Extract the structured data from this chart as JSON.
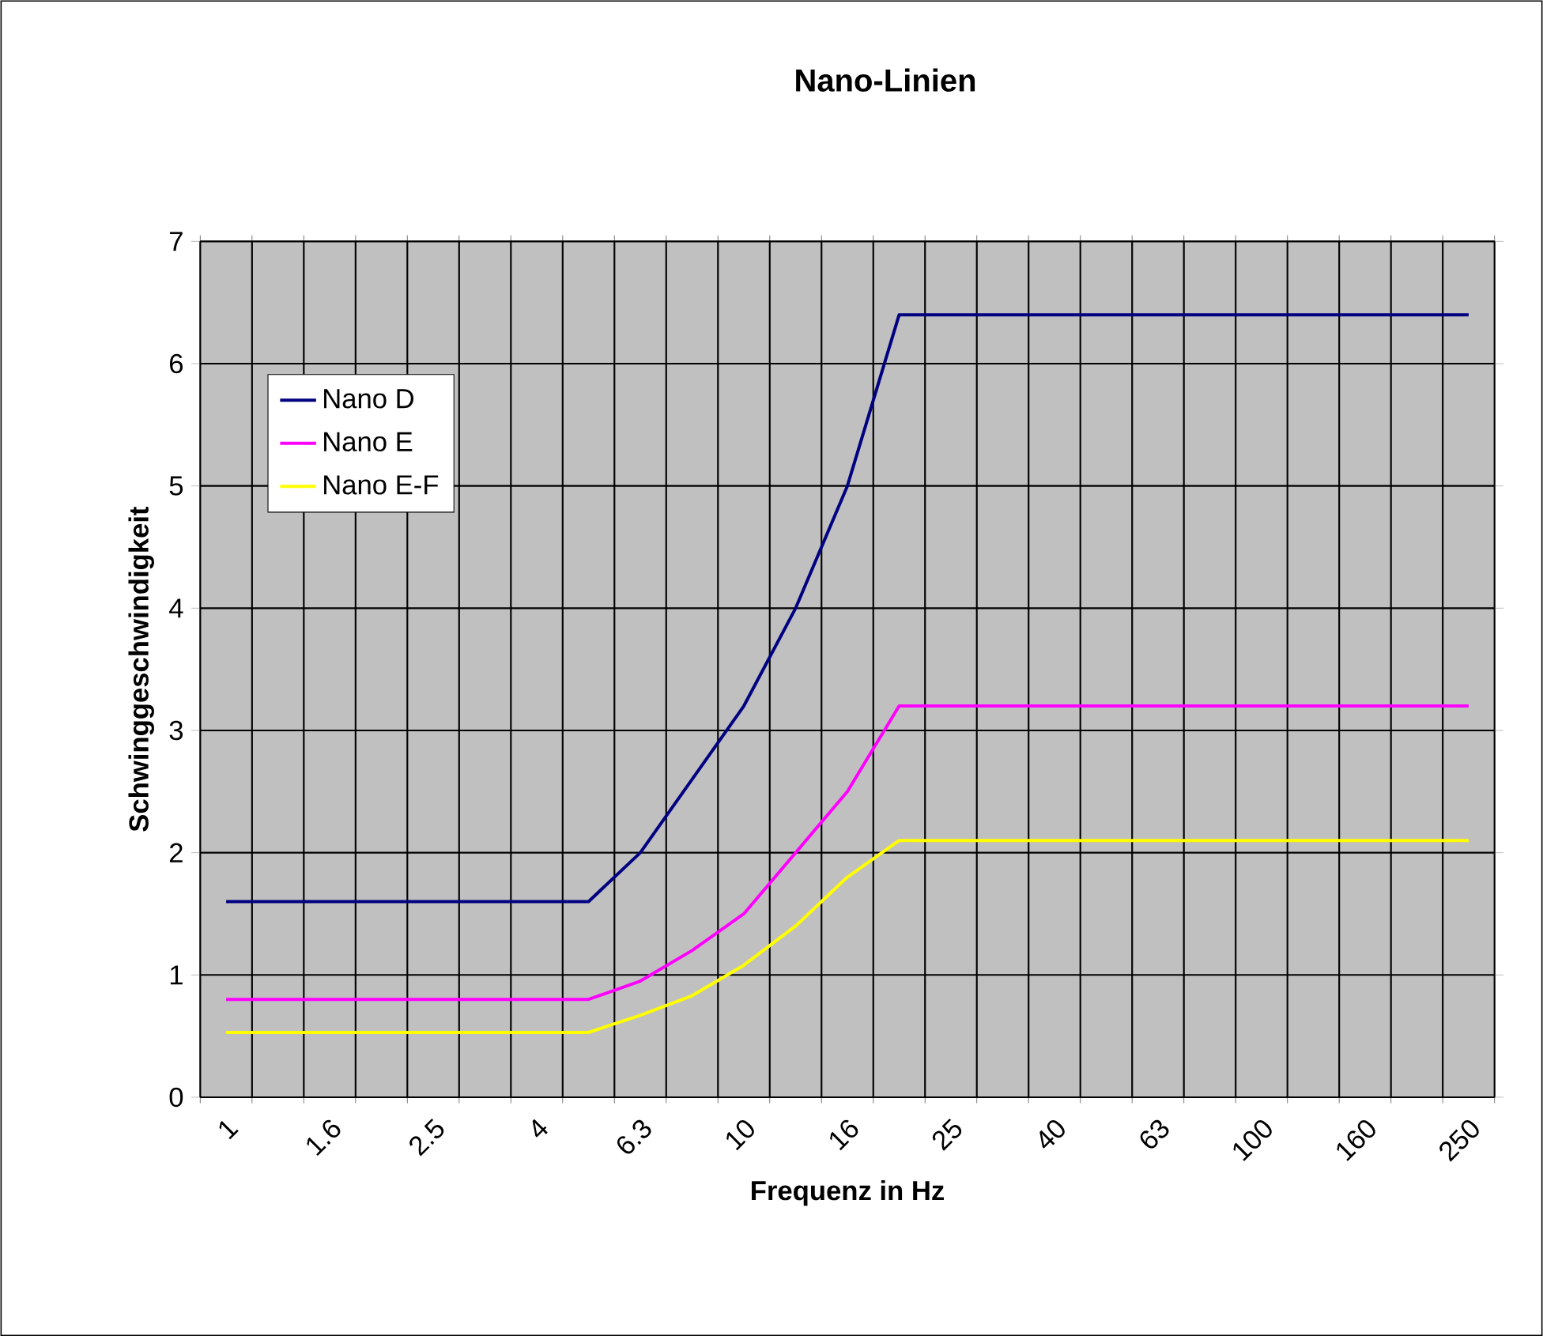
{
  "chart_data": {
    "type": "line",
    "title": "Nano-Linien",
    "xlabel": "Frequenz in Hz",
    "ylabel": "Schwinggeschwindigkeit",
    "categories": [
      "1",
      null,
      "1.6",
      null,
      "2.5",
      null,
      "4",
      null,
      "6.3",
      null,
      "10",
      null,
      "16",
      null,
      "25",
      null,
      "40",
      null,
      "63",
      null,
      "100",
      null,
      "160",
      null,
      "250"
    ],
    "series": [
      {
        "name": "Nano D",
        "color": "#000080",
        "values": [
          1.6,
          1.6,
          1.6,
          1.6,
          1.6,
          1.6,
          1.6,
          1.6,
          2.0,
          2.6,
          3.2,
          4.0,
          5.0,
          6.4,
          6.4,
          6.4,
          6.4,
          6.4,
          6.4,
          6.4,
          6.4,
          6.4,
          6.4,
          6.4,
          6.4
        ]
      },
      {
        "name": "Nano E",
        "color": "#ff00ff",
        "values": [
          0.8,
          0.8,
          0.8,
          0.8,
          0.8,
          0.8,
          0.8,
          0.8,
          0.95,
          1.2,
          1.5,
          2.0,
          2.5,
          3.2,
          3.2,
          3.2,
          3.2,
          3.2,
          3.2,
          3.2,
          3.2,
          3.2,
          3.2,
          3.2,
          3.2
        ]
      },
      {
        "name": "Nano E-F",
        "color": "#ffff00",
        "values": [
          0.53,
          0.53,
          0.53,
          0.53,
          0.53,
          0.53,
          0.53,
          0.53,
          0.67,
          0.83,
          1.08,
          1.4,
          1.8,
          2.1,
          2.1,
          2.1,
          2.1,
          2.1,
          2.1,
          2.1,
          2.1,
          2.1,
          2.1,
          2.1,
          2.1
        ]
      }
    ],
    "ylim": [
      0,
      7
    ],
    "yticks": [
      0,
      1,
      2,
      3,
      4,
      5,
      6,
      7
    ],
    "grid": true,
    "legend": "top left",
    "marker": "none",
    "line_style": "solid"
  }
}
